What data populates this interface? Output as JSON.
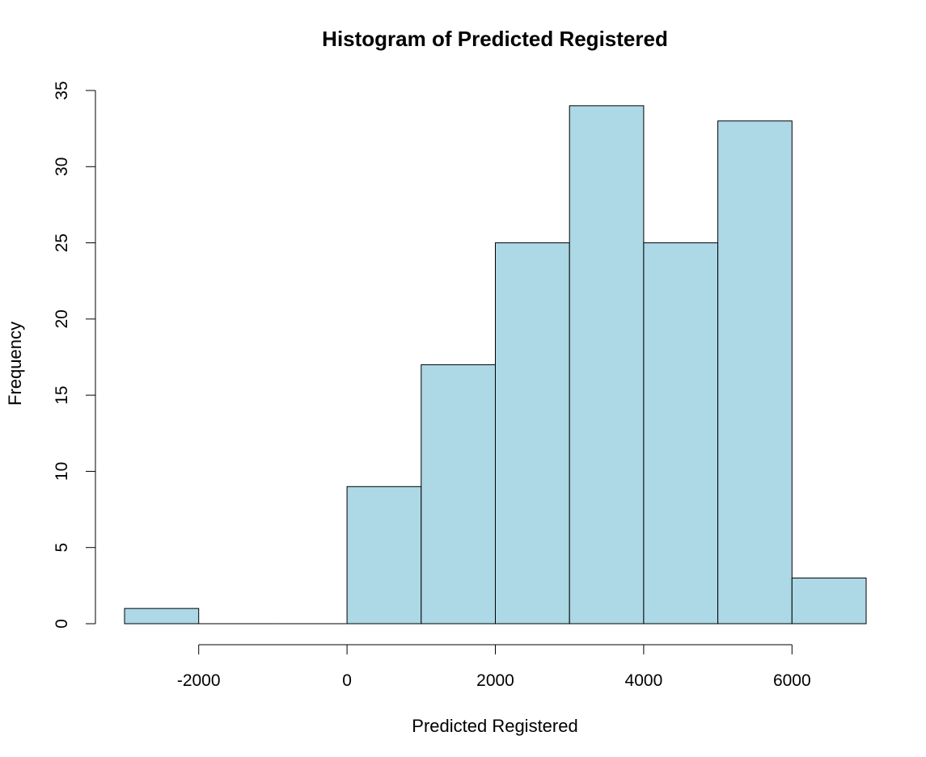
{
  "chart_data": {
    "type": "bar",
    "subtype": "histogram",
    "title": "Histogram of Predicted Registered",
    "xlabel": "Predicted Registered",
    "ylabel": "Frequency",
    "bar_color": "#add8e6",
    "border_color": "#000000",
    "bin_edges": [
      -3000,
      -2000,
      -1000,
      0,
      1000,
      2000,
      3000,
      4000,
      5000,
      6000,
      7000
    ],
    "counts": [
      1,
      0,
      0,
      9,
      17,
      25,
      34,
      25,
      33,
      3
    ],
    "xlim": [
      -3000,
      7000
    ],
    "ylim": [
      0,
      35
    ],
    "x_ticks": [
      -2000,
      0,
      2000,
      4000,
      6000
    ],
    "x_tick_labels": [
      "-2000",
      "0",
      "2000",
      "4000",
      "6000"
    ],
    "y_ticks": [
      0,
      5,
      10,
      15,
      20,
      25,
      30,
      35
    ],
    "y_tick_labels": [
      "0",
      "5",
      "10",
      "15",
      "20",
      "25",
      "30",
      "35"
    ],
    "grid": false,
    "legend": "none"
  }
}
